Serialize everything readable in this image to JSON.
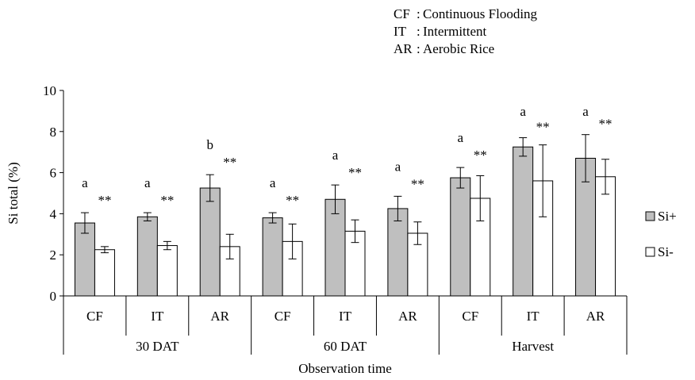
{
  "legend_notes": [
    {
      "abbr": "CF",
      "sep": ":",
      "text": "Continuous Flooding"
    },
    {
      "abbr": "IT",
      "sep": ":",
      "text": "Intermittent"
    },
    {
      "abbr": "AR",
      "sep": ":",
      "text": "Aerobic Rice"
    }
  ],
  "chart_data": {
    "type": "bar",
    "title": "",
    "xlabel": "Observation time",
    "ylabel": "Si total (%)",
    "ylim": [
      0,
      10
    ],
    "yticks": [
      "0",
      "2",
      "4",
      "6",
      "8",
      "10"
    ],
    "grid": false,
    "legend_position": "right",
    "groups": [
      {
        "label": "30 DAT",
        "categories": [
          "CF",
          "IT",
          "AR"
        ]
      },
      {
        "label": "60 DAT",
        "categories": [
          "CF",
          "IT",
          "AR"
        ]
      },
      {
        "label": "Harvest",
        "categories": [
          "CF",
          "IT",
          "AR"
        ]
      }
    ],
    "categories": [
      "CF",
      "IT",
      "AR",
      "CF",
      "IT",
      "AR",
      "CF",
      "IT",
      "AR"
    ],
    "series": [
      {
        "name": "Si+",
        "color": "#bfbfbf",
        "values": [
          3.55,
          3.85,
          5.25,
          3.8,
          4.7,
          4.25,
          5.75,
          7.25,
          6.7
        ],
        "errors": [
          0.5,
          0.2,
          0.65,
          0.25,
          0.7,
          0.6,
          0.5,
          0.45,
          1.15
        ]
      },
      {
        "name": "Si-",
        "color": "#ffffff",
        "values": [
          2.25,
          2.45,
          2.4,
          2.65,
          3.15,
          3.05,
          4.75,
          5.6,
          5.8
        ],
        "errors": [
          0.15,
          0.2,
          0.6,
          0.85,
          0.55,
          0.55,
          1.1,
          1.75,
          0.85
        ]
      }
    ],
    "annotations": {
      "letters": [
        "a",
        "a",
        "b",
        "a",
        "a",
        "a",
        "a",
        "a",
        "a"
      ],
      "stars": [
        "**",
        "**",
        "**",
        "**",
        "**",
        "**",
        "**",
        "**",
        "**"
      ]
    }
  }
}
